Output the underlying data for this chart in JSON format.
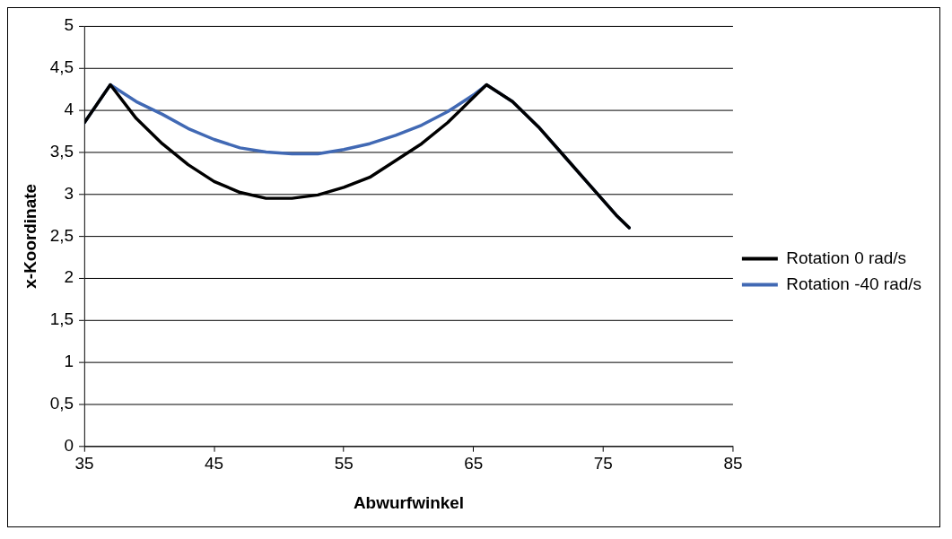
{
  "chart_data": {
    "type": "line",
    "xlabel": "Abwurfwinkel",
    "ylabel": "x-Koordinate",
    "xlim": [
      35,
      85
    ],
    "xticks": [
      35,
      45,
      55,
      65,
      75,
      85
    ],
    "ylim": [
      0,
      5
    ],
    "yticks": [
      {
        "value": 0,
        "label": "0"
      },
      {
        "value": 0.5,
        "label": "0,5"
      },
      {
        "value": 1,
        "label": "1"
      },
      {
        "value": 1.5,
        "label": "1,5"
      },
      {
        "value": 2,
        "label": "2"
      },
      {
        "value": 2.5,
        "label": "2,5"
      },
      {
        "value": 3,
        "label": "3"
      },
      {
        "value": 3.5,
        "label": "3,5"
      },
      {
        "value": 4,
        "label": "4"
      },
      {
        "value": 4.5,
        "label": "4,5"
      },
      {
        "value": 5,
        "label": "5"
      }
    ],
    "grid": "y",
    "legend": "right",
    "marker": "none",
    "line_style": "solid",
    "series": [
      {
        "name": "Rotation 0 rad/s",
        "color": "#000000",
        "x": [
          35,
          37,
          39,
          41,
          43,
          45,
          47,
          49,
          51,
          53,
          55,
          57,
          59,
          61,
          63,
          65,
          66,
          68,
          70,
          72,
          74,
          76,
          77
        ],
        "values": [
          3.85,
          4.3,
          3.9,
          3.6,
          3.35,
          3.15,
          3.02,
          2.95,
          2.95,
          2.99,
          3.08,
          3.2,
          3.4,
          3.6,
          3.85,
          4.15,
          4.3,
          4.1,
          3.8,
          3.45,
          3.1,
          2.75,
          2.6
        ]
      },
      {
        "name": "Rotation -40 rad/s",
        "color": "#4169b4",
        "x": [
          35,
          37,
          39,
          41,
          43,
          45,
          47,
          49,
          51,
          53,
          55,
          57,
          59,
          61,
          63,
          65,
          66,
          68,
          70,
          72,
          74,
          76,
          77
        ],
        "values": [
          3.85,
          4.3,
          4.1,
          3.95,
          3.78,
          3.65,
          3.55,
          3.5,
          3.48,
          3.48,
          3.53,
          3.6,
          3.7,
          3.82,
          3.98,
          4.18,
          4.3,
          4.1,
          3.8,
          3.45,
          3.1,
          2.75,
          2.6
        ]
      }
    ]
  }
}
